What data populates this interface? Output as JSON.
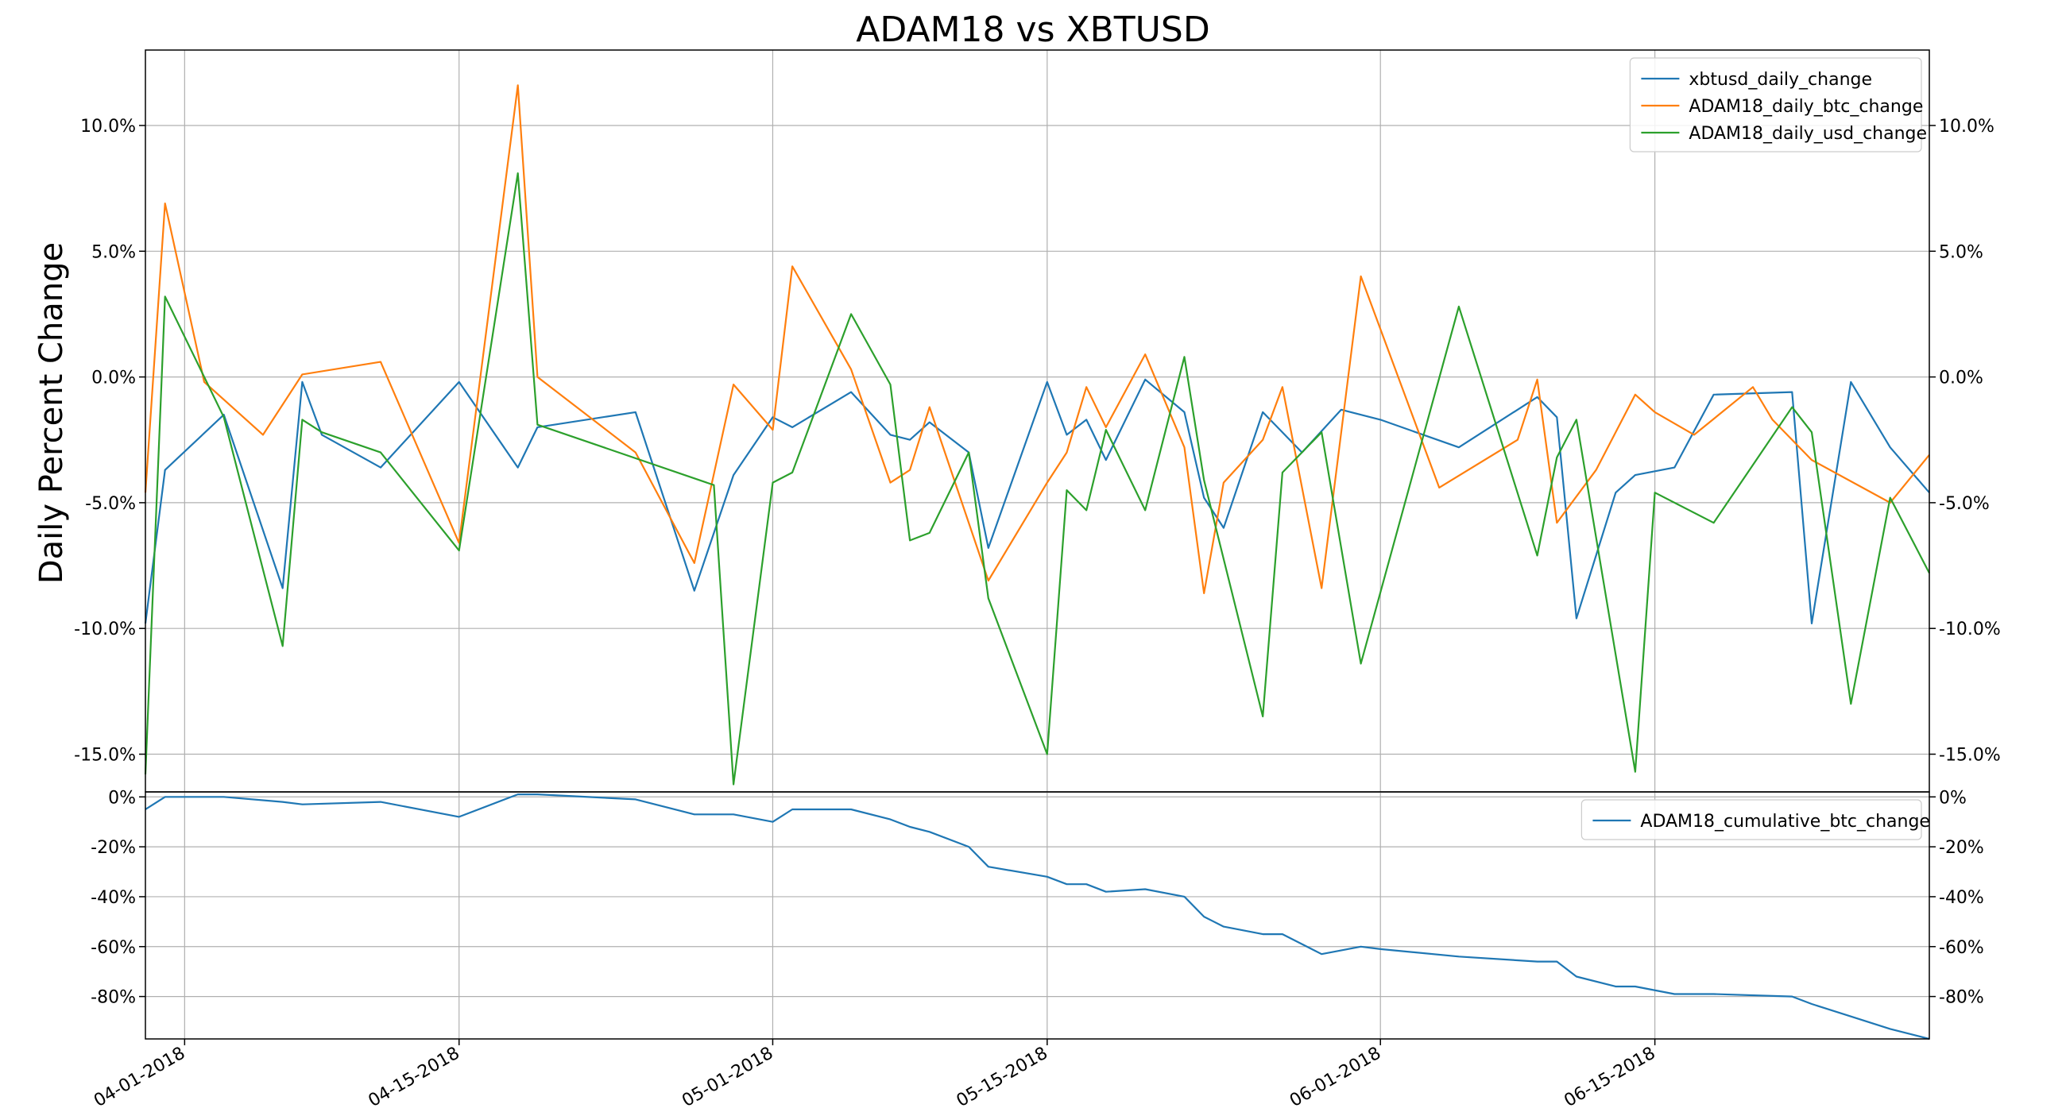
{
  "chart_data": {
    "type": "line",
    "title": "ADAM18 vs XBTUSD",
    "ylabel": "Daily Percent Change",
    "x_ticks": [
      "04-01-2018",
      "04-15-2018",
      "05-01-2018",
      "05-15-2018",
      "06-01-2018",
      "06-15-2018"
    ],
    "x_range": [
      "03-30-2018",
      "06-29-2018"
    ],
    "colors": {
      "blue": "#1f77b4",
      "orange": "#ff7f0e",
      "green": "#2ca02c",
      "grid": "#b0b0b0"
    },
    "panels": [
      {
        "name": "daily",
        "ylim": [
          -16.5,
          13
        ],
        "y_ticks": [
          -15,
          -10,
          -5,
          0,
          5,
          10
        ],
        "y_tick_labels": [
          "-15.0%",
          "-10.0%",
          "-5.0%",
          "0.0%",
          "5.0%",
          "10.0%"
        ],
        "legend": "top-right",
        "grid": true,
        "series": [
          {
            "name": "xbtusd_daily_change",
            "color": "#1f77b4",
            "x": [
              "03-30-2018",
              "03-31-2018",
              "04-03-2018",
              "04-06-2018",
              "04-07-2018",
              "04-08-2018",
              "04-11-2018",
              "04-15-2018",
              "04-18-2018",
              "04-19-2018",
              "04-24-2018",
              "04-27-2018",
              "04-29-2018",
              "05-01-2018",
              "05-02-2018",
              "05-05-2018",
              "05-07-2018",
              "05-08-2018",
              "05-09-2018",
              "05-11-2018",
              "05-12-2018",
              "05-15-2018",
              "05-16-2018",
              "05-17-2018",
              "05-18-2018",
              "05-20-2018",
              "05-22-2018",
              "05-23-2018",
              "05-24-2018",
              "05-26-2018",
              "05-28-2018",
              "05-30-2018",
              "06-01-2018",
              "06-05-2018",
              "06-09-2018",
              "06-10-2018",
              "06-11-2018",
              "06-13-2018",
              "06-14-2018",
              "06-16-2018",
              "06-18-2018",
              "06-22-2018",
              "06-23-2018",
              "06-25-2018",
              "06-27-2018",
              "06-29-2018"
            ],
            "values": [
              -9.8,
              -3.7,
              -1.5,
              -8.4,
              -0.2,
              -2.3,
              -3.6,
              -0.2,
              -3.6,
              -2.0,
              -1.4,
              -8.5,
              -3.9,
              -1.6,
              -2.0,
              -0.6,
              -2.3,
              -2.5,
              -1.8,
              -3.0,
              -6.8,
              -0.2,
              -2.3,
              -1.7,
              -3.3,
              -0.1,
              -1.4,
              -4.8,
              -6.0,
              -1.4,
              -3.0,
              -1.3,
              -1.7,
              -2.8,
              -0.8,
              -1.6,
              -9.6,
              -4.6,
              -3.9,
              -3.6,
              -0.7,
              -0.6,
              -9.8,
              -0.2,
              -2.8,
              -4.6
            ]
          },
          {
            "name": "ADAM18_daily_btc_change",
            "color": "#ff7f0e",
            "x": [
              "03-30-2018",
              "03-31-2018",
              "04-02-2018",
              "04-05-2018",
              "04-07-2018",
              "04-11-2018",
              "04-15-2018",
              "04-18-2018",
              "04-19-2018",
              "04-24-2018",
              "04-27-2018",
              "04-29-2018",
              "05-01-2018",
              "05-02-2018",
              "05-05-2018",
              "05-07-2018",
              "05-08-2018",
              "05-09-2018",
              "05-12-2018",
              "05-15-2018",
              "05-16-2018",
              "05-17-2018",
              "05-18-2018",
              "05-20-2018",
              "05-22-2018",
              "05-23-2018",
              "05-24-2018",
              "05-26-2018",
              "05-27-2018",
              "05-29-2018",
              "05-31-2018",
              "06-04-2018",
              "06-08-2018",
              "06-09-2018",
              "06-10-2018",
              "06-12-2018",
              "06-14-2018",
              "06-15-2018",
              "06-17-2018",
              "06-20-2018",
              "06-21-2018",
              "06-23-2018",
              "06-27-2018",
              "06-29-2018"
            ],
            "values": [
              -4.6,
              6.9,
              -0.2,
              -2.3,
              0.1,
              0.6,
              -6.6,
              11.6,
              0.0,
              -3.0,
              -7.4,
              -0.3,
              -2.1,
              4.4,
              0.3,
              -4.2,
              -3.7,
              -1.2,
              -8.1,
              -4.2,
              -3.0,
              -0.4,
              -2.0,
              0.9,
              -2.8,
              -8.6,
              -4.2,
              -2.5,
              -0.4,
              -8.4,
              4.0,
              -4.4,
              -2.5,
              -0.1,
              -5.8,
              -3.7,
              -0.7,
              -1.4,
              -2.3,
              -0.4,
              -1.7,
              -3.3,
              -5.0,
              -3.1
            ]
          },
          {
            "name": "ADAM18_daily_usd_change",
            "color": "#2ca02c",
            "x": [
              "03-30-2018",
              "03-31-2018",
              "04-03-2018",
              "04-06-2018",
              "04-07-2018",
              "04-08-2018",
              "04-11-2018",
              "04-15-2018",
              "04-18-2018",
              "04-19-2018",
              "04-28-2018",
              "04-29-2018",
              "05-01-2018",
              "05-02-2018",
              "05-05-2018",
              "05-07-2018",
              "05-08-2018",
              "05-09-2018",
              "05-11-2018",
              "05-12-2018",
              "05-15-2018",
              "05-16-2018",
              "05-17-2018",
              "05-18-2018",
              "05-20-2018",
              "05-22-2018",
              "05-23-2018",
              "05-26-2018",
              "05-27-2018",
              "05-29-2018",
              "05-31-2018",
              "06-05-2018",
              "06-09-2018",
              "06-10-2018",
              "06-11-2018",
              "06-14-2018",
              "06-15-2018",
              "06-18-2018",
              "06-22-2018",
              "06-23-2018",
              "06-25-2018",
              "06-27-2018",
              "06-29-2018"
            ],
            "values": [
              -15.8,
              3.2,
              -1.6,
              -10.7,
              -1.7,
              -2.2,
              -3.0,
              -6.9,
              8.1,
              -1.9,
              -4.3,
              -16.2,
              -4.2,
              -3.8,
              2.5,
              -0.3,
              -6.5,
              -6.2,
              -3.0,
              -8.8,
              -15.0,
              -4.5,
              -5.3,
              -2.1,
              -5.3,
              0.8,
              -4.1,
              -13.5,
              -3.8,
              -2.2,
              -11.4,
              2.8,
              -7.1,
              -3.2,
              -1.7,
              -15.7,
              -4.6,
              -5.8,
              -1.2,
              -2.2,
              -13.0,
              -4.8,
              -7.8
            ]
          }
        ]
      },
      {
        "name": "cumulative",
        "ylim": [
          -97,
          2
        ],
        "y_ticks": [
          0,
          -20,
          -40,
          -60,
          -80
        ],
        "y_tick_labels": [
          "0%",
          "-20%",
          "-40%",
          "-60%",
          "-80%"
        ],
        "legend": "top-right",
        "grid": true,
        "series": [
          {
            "name": "ADAM18_cumulative_btc_change",
            "color": "#1f77b4",
            "x": [
              "03-30-2018",
              "03-31-2018",
              "04-03-2018",
              "04-06-2018",
              "04-07-2018",
              "04-11-2018",
              "04-15-2018",
              "04-18-2018",
              "04-19-2018",
              "04-24-2018",
              "04-27-2018",
              "04-29-2018",
              "05-01-2018",
              "05-02-2018",
              "05-05-2018",
              "05-07-2018",
              "05-08-2018",
              "05-09-2018",
              "05-11-2018",
              "05-12-2018",
              "05-15-2018",
              "05-16-2018",
              "05-17-2018",
              "05-18-2018",
              "05-20-2018",
              "05-22-2018",
              "05-23-2018",
              "05-24-2018",
              "05-26-2018",
              "05-27-2018",
              "05-29-2018",
              "05-31-2018",
              "06-01-2018",
              "06-05-2018",
              "06-09-2018",
              "06-10-2018",
              "06-11-2018",
              "06-13-2018",
              "06-14-2018",
              "06-16-2018",
              "06-18-2018",
              "06-22-2018",
              "06-23-2018",
              "06-25-2018",
              "06-27-2018",
              "06-29-2018"
            ],
            "values": [
              -5,
              0,
              0,
              -2,
              -3,
              -2,
              -8,
              1,
              1,
              -1,
              -7,
              -7,
              -10,
              -5,
              -5,
              -9,
              -12,
              -14,
              -20,
              -28,
              -32,
              -35,
              -35,
              -38,
              -37,
              -40,
              -48,
              -52,
              -55,
              -55,
              -63,
              -60,
              -61,
              -64,
              -66,
              -66,
              -72,
              -76,
              -76,
              -79,
              -79,
              -80,
              -83,
              -88,
              -93,
              -97
            ]
          }
        ]
      }
    ]
  }
}
